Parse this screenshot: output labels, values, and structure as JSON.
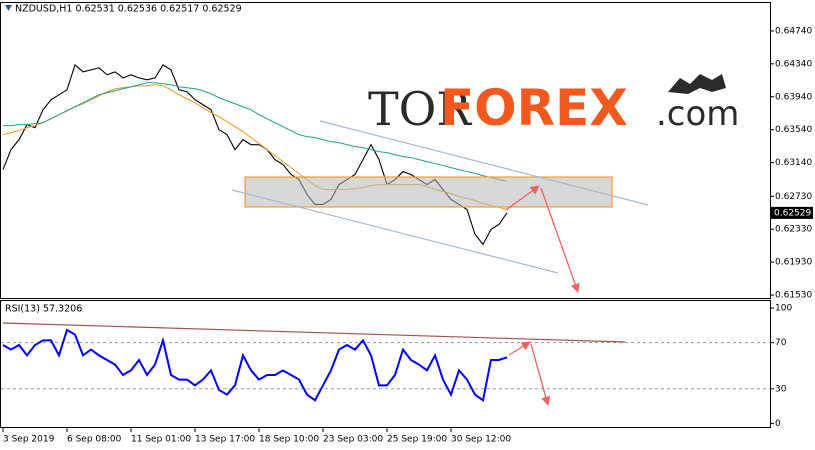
{
  "chart_data": [
    {
      "type": "line",
      "title": "NZDUSD,H1  0.62531 0.62536 0.62517 0.62529",
      "logo": {
        "prefix": "TOR",
        "brand": "FOREX",
        "suffix": ".com"
      },
      "categories": [
        "3 Sep 2019",
        null,
        null,
        null,
        null,
        null,
        null,
        null,
        "6 Sep 08:00",
        null,
        null,
        null,
        null,
        null,
        null,
        null,
        "11 Sep 01:00",
        null,
        null,
        null,
        null,
        null,
        null,
        null,
        "13 Sep 17:00",
        null,
        null,
        null,
        null,
        null,
        null,
        null,
        "18 Sep 10:00",
        null,
        null,
        null,
        null,
        null,
        null,
        null,
        "23 Sep 03:00",
        null,
        null,
        null,
        null,
        null,
        null,
        null,
        "25 Sep 19:00",
        null,
        null,
        null,
        null,
        null,
        null,
        null,
        "30 Sep 12:00",
        null,
        null,
        null,
        null,
        null,
        null,
        null
      ],
      "series": [
        {
          "color": "#000000",
          "values": [
            0.63055,
            0.63298,
            0.63419,
            0.63601,
            0.63564,
            0.63782,
            0.63904,
            0.63964,
            0.64025,
            0.64328,
            0.64243,
            0.64267,
            0.64292,
            0.64207,
            0.64243,
            0.6417,
            0.64207,
            0.6417,
            0.64146,
            0.6417,
            0.64328,
            0.64267,
            0.64025,
            0.64001,
            0.63904,
            0.63843,
            0.63782,
            0.6354,
            0.63479,
            0.63298,
            0.63419,
            0.63358,
            0.63358,
            0.63298,
            0.63176,
            0.63116,
            0.62995,
            0.62934,
            0.62752,
            0.62631,
            0.62631,
            0.62692,
            0.62873,
            0.62934,
            0.62995,
            0.63176,
            0.63358,
            0.63176,
            0.62873,
            0.62934,
            0.63031,
            0.62995,
            0.62934,
            0.62873,
            0.62934,
            0.62813,
            0.62692,
            0.62631,
            0.6257,
            0.62267,
            0.62146,
            0.62328,
            0.62389,
            0.62529
          ]
        },
        {
          "color": "#e69b1e",
          "values": [
            0.63479,
            0.63504,
            0.63528,
            0.63564,
            0.63589,
            0.63625,
            0.63673,
            0.63722,
            0.6377,
            0.63819,
            0.63855,
            0.63904,
            0.63952,
            0.64001,
            0.64037,
            0.64049,
            0.64061,
            0.64073,
            0.64073,
            0.64086,
            0.64073,
            0.64025,
            0.63964,
            0.63916,
            0.63867,
            0.63807,
            0.63746,
            0.63698,
            0.63637,
            0.63576,
            0.63516,
            0.63443,
            0.6337,
            0.63298,
            0.63225,
            0.63152,
            0.63079,
            0.63007,
            0.62934,
            0.62861,
            0.62813,
            0.62813,
            0.62813,
            0.62813,
            0.62825,
            0.62837,
            0.62861,
            0.62873,
            0.62873,
            0.62873,
            0.62873,
            0.62873,
            0.62873,
            0.62849,
            0.62813,
            0.62789,
            0.62764,
            0.62728,
            0.62704,
            0.62679,
            0.62643,
            0.62619,
            0.62595,
            0.6257
          ]
        },
        {
          "color": "#20a08c",
          "values": [
            0.63589,
            0.63589,
            0.63601,
            0.63601,
            0.63613,
            0.63625,
            0.63673,
            0.63722,
            0.6377,
            0.63819,
            0.63867,
            0.63916,
            0.63964,
            0.63989,
            0.64013,
            0.64037,
            0.64061,
            0.64086,
            0.6411,
            0.6411,
            0.64098,
            0.64086,
            0.64061,
            0.64049,
            0.64037,
            0.64013,
            0.63976,
            0.63928,
            0.63892,
            0.63855,
            0.63819,
            0.63782,
            0.63722,
            0.63673,
            0.63625,
            0.63576,
            0.63528,
            0.63479,
            0.63455,
            0.63443,
            0.63419,
            0.63395,
            0.63382,
            0.63358,
            0.63334,
            0.63322,
            0.63298,
            0.63273,
            0.63261,
            0.63237,
            0.63213,
            0.63201,
            0.63176,
            0.63152,
            0.63128,
            0.63104,
            0.63079,
            0.63055,
            0.63031,
            0.63007,
            0.62982,
            0.62958,
            0.62934,
            0.6291
          ]
        }
      ],
      "last_price": 0.62529,
      "ylim": [
        0.61494,
        0.65092
      ],
      "yticks": [
        {
          "value": 0.6474,
          "label": "0.64740"
        },
        {
          "value": 0.6434,
          "label": "0.64340"
        },
        {
          "value": 0.6394,
          "label": "0.63940"
        },
        {
          "value": 0.6354,
          "label": "0.63540"
        },
        {
          "value": 0.6314,
          "label": "0.63140"
        },
        {
          "value": 0.6273,
          "label": "0.62730"
        },
        {
          "value": 0.6233,
          "label": "0.62330"
        },
        {
          "value": 0.6193,
          "label": "0.61930"
        },
        {
          "value": 0.6153,
          "label": "0.61530"
        }
      ]
    },
    {
      "type": "line",
      "title": "RSI(13) 57.3206",
      "series": [
        {
          "color": "#0000ff",
          "values": [
            68,
            64,
            68,
            59,
            68,
            72,
            72,
            59,
            81,
            77,
            59,
            64,
            59,
            55,
            51,
            42,
            46,
            55,
            42,
            51,
            72,
            42,
            38,
            38,
            33,
            38,
            46,
            29,
            25,
            33,
            59,
            46,
            38,
            42,
            42,
            46,
            42,
            38,
            25,
            20,
            33,
            46,
            64,
            68,
            64,
            72,
            59,
            33,
            33,
            42,
            64,
            55,
            51,
            46,
            59,
            38,
            25,
            46,
            38,
            25,
            20,
            55,
            55,
            57.3206
          ]
        }
      ],
      "ylim": [
        -4,
        107
      ],
      "yticks": [
        100,
        70,
        30,
        0
      ],
      "levels": [
        70,
        30
      ]
    }
  ]
}
